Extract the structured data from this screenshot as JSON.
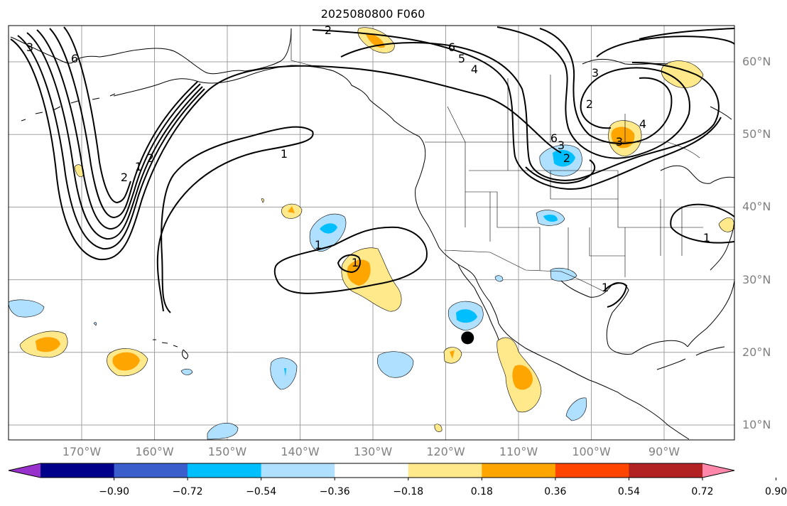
{
  "title": "2025080800 F060",
  "lat_labels": [
    {
      "text": "60°N",
      "lat": 60
    },
    {
      "text": "50°N",
      "lat": 50
    },
    {
      "text": "40°N",
      "lat": 40
    },
    {
      "text": "30°N",
      "lat": 30
    },
    {
      "text": "20°N",
      "lat": 20
    },
    {
      "text": "10°N",
      "lat": 10
    }
  ],
  "lon_labels": [
    {
      "text": "170°W",
      "lon": -170
    },
    {
      "text": "160°W",
      "lon": -160
    },
    {
      "text": "150°W",
      "lon": -150
    },
    {
      "text": "140°W",
      "lon": -140
    },
    {
      "text": "130°W",
      "lon": -130
    },
    {
      "text": "120°W",
      "lon": -120
    },
    {
      "text": "110°W",
      "lon": -110
    },
    {
      "text": "100°W",
      "lon": -100
    },
    {
      "text": "90°W",
      "lon": -90
    }
  ],
  "colorbar": {
    "ticks": [
      "−0.90",
      "−0.72",
      "−0.54",
      "−0.36",
      "−0.18",
      "0.18",
      "0.36",
      "0.54",
      "0.72",
      "0.90"
    ],
    "colors": [
      "#9932cc",
      "#00008b",
      "#3a5fcd",
      "#00bfff",
      "#b0e0ff",
      "#ffffff",
      "#ffe98a",
      "#ffa500",
      "#ff4500",
      "#b22222",
      "#ff88aa"
    ]
  },
  "contour_labels": [
    "3",
    "6",
    "2",
    "6",
    "5",
    "4",
    "3",
    "1",
    "2",
    "1",
    "2",
    "3",
    "2",
    "6",
    "4",
    "3",
    "2",
    "1",
    "1",
    "1",
    "1"
  ],
  "marker": {
    "lat": 22,
    "lon": -117
  }
}
